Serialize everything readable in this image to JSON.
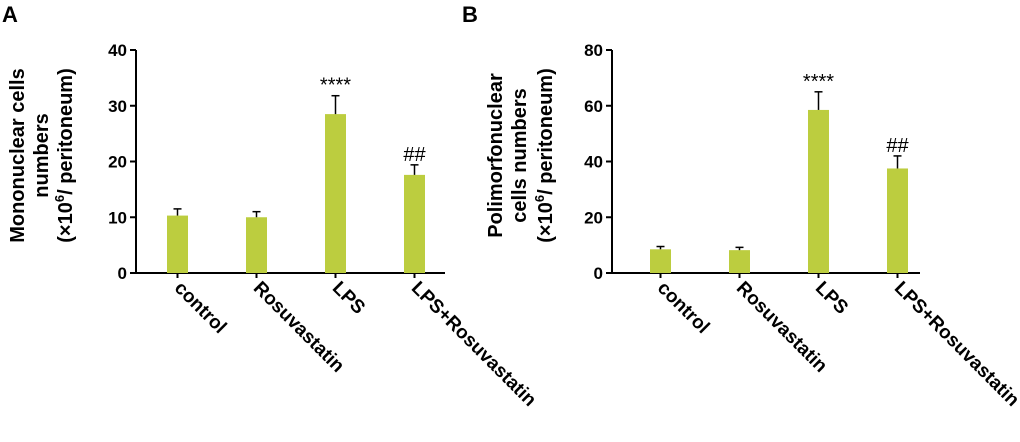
{
  "chart_data": [
    {
      "panel": "A",
      "type": "bar",
      "ylabel_lines": [
        "Mononuclear cells",
        "numbers",
        "(×10",
        "6",
        "/ peritoneum)"
      ],
      "categories": [
        "control",
        "Rosuvastatin",
        "LPS",
        "LPS+Rosuvastatin"
      ],
      "values": [
        10.3,
        10.0,
        28.5,
        17.6
      ],
      "errors": [
        1.2,
        1.0,
        3.3,
        1.8
      ],
      "annotations": [
        "",
        "",
        "****",
        "##"
      ],
      "yticks": [
        "0",
        "10",
        "20",
        "30",
        "40"
      ],
      "ylim": [
        0,
        40
      ],
      "bar_color": "#bccd3f"
    },
    {
      "panel": "B",
      "type": "bar",
      "ylabel_lines": [
        "Polimorfonuclear",
        "cells numbers",
        "(×10",
        "6",
        "/ peritoneum)"
      ],
      "categories": [
        "control",
        "Rosuvastatin",
        "LPS",
        "LPS+Rosuvastatin"
      ],
      "values": [
        8.5,
        8.2,
        58.5,
        37.5
      ],
      "errors": [
        1.0,
        1.0,
        6.5,
        4.5
      ],
      "annotations": [
        "",
        "",
        "****",
        "##"
      ],
      "yticks": [
        "0",
        "20",
        "40",
        "60",
        "80"
      ],
      "ylim": [
        0,
        80
      ],
      "bar_color": "#bccd3f"
    }
  ]
}
